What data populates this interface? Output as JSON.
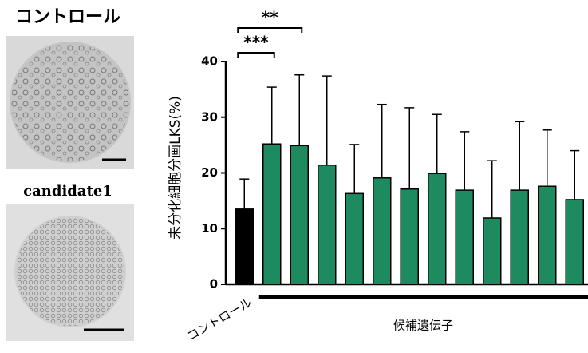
{
  "panels": [
    {
      "title": "コントロール"
    },
    {
      "title": "candidate1"
    }
  ],
  "chart_data": {
    "type": "bar",
    "ylabel": "未分化細胞分画LKS(%)",
    "categories": [
      "コントロール",
      null,
      null,
      null,
      null,
      null,
      null,
      null,
      null,
      null,
      null,
      null,
      null
    ],
    "values": [
      13.5,
      25.2,
      24.9,
      21.4,
      16.3,
      19.1,
      17.1,
      19.9,
      16.9,
      11.9,
      16.9,
      17.6,
      15.2
    ],
    "errors": [
      5.4,
      10.2,
      12.7,
      16.0,
      8.8,
      13.2,
      14.6,
      10.6,
      10.5,
      10.3,
      12.3,
      10.1,
      8.8
    ],
    "colors": [
      "#000000",
      "#1d8a60",
      "#1d8a60",
      "#1d8a60",
      "#1d8a60",
      "#1d8a60",
      "#1d8a60",
      "#1d8a60",
      "#1d8a60",
      "#1d8a60",
      "#1d8a60",
      "#1d8a60",
      "#1d8a60"
    ],
    "ylim": [
      0,
      40
    ],
    "yticks": [
      0,
      10,
      20,
      30,
      40
    ],
    "group": {
      "label": "候補遺伝子",
      "from": 1,
      "to": 12
    },
    "annotations": [
      {
        "from": 0,
        "to": 1,
        "label": "***"
      },
      {
        "from": 0,
        "to": 2,
        "label": "**"
      }
    ]
  }
}
